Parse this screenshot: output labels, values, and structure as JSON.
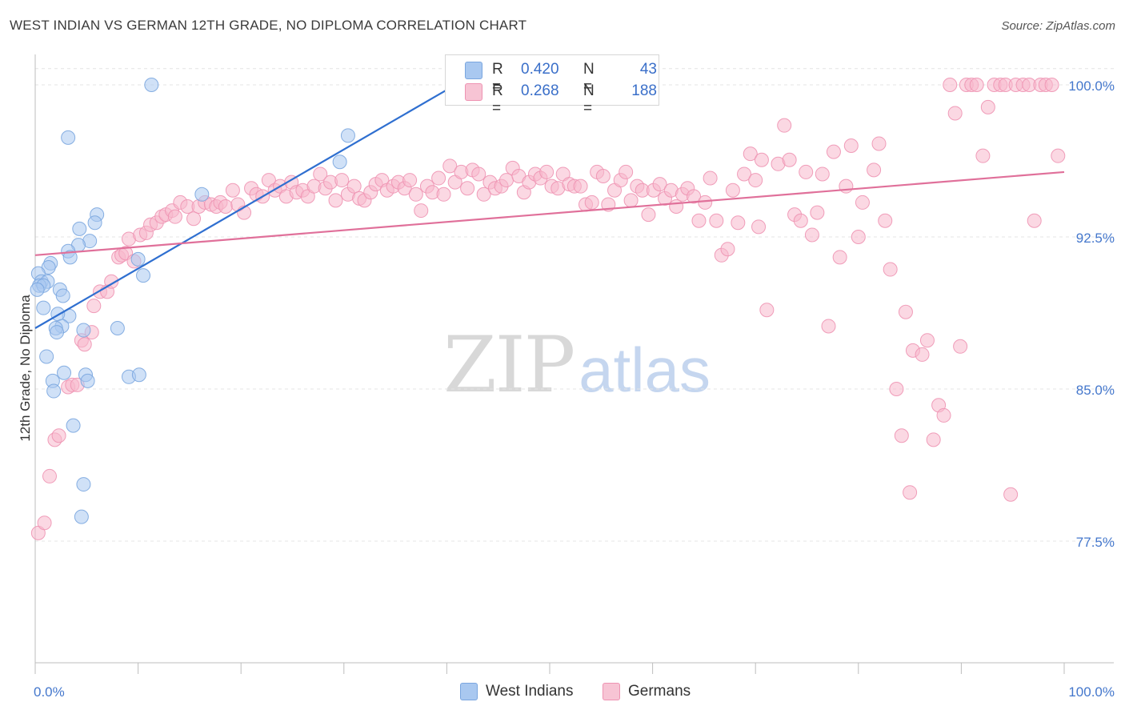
{
  "title": "WEST INDIAN VS GERMAN 12TH GRADE, NO DIPLOMA CORRELATION CHART",
  "source": "Source: ZipAtlas.com",
  "watermark": {
    "zip": "ZIP",
    "atlas": "atlas"
  },
  "legend": {
    "series": [
      {
        "r_label": "R = ",
        "r_value": "0.420",
        "n_label": "N = ",
        "n_value": "43"
      },
      {
        "r_label": "R = ",
        "r_value": "0.268",
        "n_label": "N = ",
        "n_value": "188"
      }
    ]
  },
  "bottom_legend": [
    "West Indians",
    "Germans"
  ],
  "chart_data": {
    "type": "scatter",
    "title": "WEST INDIAN VS GERMAN 12TH GRADE, NO DIPLOMA CORRELATION CHART",
    "xlabel": "",
    "ylabel": "12th Grade, No Diploma",
    "xlim": [
      0,
      100
    ],
    "ylim": [
      71.5,
      101.5
    ],
    "x_tick_labels": [
      "0.0%",
      "100.0%"
    ],
    "y_ticks": [
      100.0,
      92.5,
      85.0,
      77.5
    ],
    "y_tick_labels": [
      "100.0%",
      "92.5%",
      "85.0%",
      "77.5%"
    ],
    "grid": true,
    "legend_position": "top-center",
    "colors": {
      "west_indians_fill": "#a9c8f0",
      "west_indians_stroke": "#7aa6df",
      "west_indians_line": "#2f6fd0",
      "germans_fill": "#f7b8cc",
      "germans_stroke": "#ee93b2",
      "germans_line": "#e0709a",
      "tick_label": "#4477cc"
    },
    "series": [
      {
        "name": "West Indians",
        "R": 0.42,
        "N": 43,
        "trend": {
          "x": [
            0,
            40.5
          ],
          "y": [
            88.0,
            99.9
          ]
        },
        "points": [
          [
            11.3,
            100.0
          ],
          [
            3.2,
            97.4
          ],
          [
            30.4,
            97.5
          ],
          [
            29.6,
            96.2
          ],
          [
            16.2,
            94.6
          ],
          [
            6.0,
            93.6
          ],
          [
            5.8,
            93.2
          ],
          [
            4.3,
            92.9
          ],
          [
            5.3,
            92.3
          ],
          [
            4.2,
            92.1
          ],
          [
            3.2,
            91.8
          ],
          [
            3.4,
            91.5
          ],
          [
            1.5,
            91.2
          ],
          [
            1.3,
            91.0
          ],
          [
            10.0,
            91.4
          ],
          [
            10.5,
            90.6
          ],
          [
            0.3,
            90.7
          ],
          [
            0.6,
            90.3
          ],
          [
            1.2,
            90.3
          ],
          [
            0.4,
            90.1
          ],
          [
            0.8,
            90.1
          ],
          [
            0.2,
            89.9
          ],
          [
            2.4,
            89.9
          ],
          [
            2.7,
            89.6
          ],
          [
            0.8,
            89.0
          ],
          [
            3.3,
            88.6
          ],
          [
            2.2,
            88.7
          ],
          [
            2.6,
            88.1
          ],
          [
            2.0,
            88.0
          ],
          [
            2.1,
            87.8
          ],
          [
            4.7,
            87.9
          ],
          [
            8.0,
            88.0
          ],
          [
            1.1,
            86.6
          ],
          [
            2.8,
            85.8
          ],
          [
            4.9,
            85.7
          ],
          [
            9.1,
            85.6
          ],
          [
            10.1,
            85.7
          ],
          [
            5.1,
            85.4
          ],
          [
            1.7,
            85.4
          ],
          [
            1.8,
            84.9
          ],
          [
            3.7,
            83.2
          ],
          [
            4.7,
            80.3
          ],
          [
            4.5,
            78.7
          ]
        ]
      },
      {
        "name": "Germans",
        "R": 0.268,
        "N": 188,
        "trend": {
          "x": [
            0,
            100
          ],
          "y": [
            91.6,
            95.7
          ]
        },
        "points": [
          [
            0.3,
            77.9
          ],
          [
            0.9,
            78.4
          ],
          [
            1.4,
            80.7
          ],
          [
            1.9,
            82.5
          ],
          [
            2.3,
            82.7
          ],
          [
            3.2,
            85.1
          ],
          [
            3.6,
            85.2
          ],
          [
            4.1,
            85.2
          ],
          [
            4.5,
            87.4
          ],
          [
            4.8,
            87.2
          ],
          [
            5.5,
            87.8
          ],
          [
            5.7,
            89.1
          ],
          [
            6.3,
            89.8
          ],
          [
            7.0,
            89.8
          ],
          [
            7.4,
            90.3
          ],
          [
            8.1,
            91.5
          ],
          [
            8.4,
            91.6
          ],
          [
            8.8,
            91.7
          ],
          [
            9.6,
            91.3
          ],
          [
            9.1,
            92.4
          ],
          [
            10.2,
            92.6
          ],
          [
            10.8,
            92.7
          ],
          [
            11.2,
            93.1
          ],
          [
            11.8,
            93.2
          ],
          [
            12.3,
            93.5
          ],
          [
            12.7,
            93.6
          ],
          [
            13.3,
            93.8
          ],
          [
            13.6,
            93.5
          ],
          [
            14.1,
            94.2
          ],
          [
            14.8,
            94.0
          ],
          [
            15.4,
            93.4
          ],
          [
            15.9,
            94.0
          ],
          [
            16.5,
            94.2
          ],
          [
            17.1,
            94.1
          ],
          [
            17.6,
            94.0
          ],
          [
            18.0,
            94.2
          ],
          [
            18.5,
            94.0
          ],
          [
            19.2,
            94.8
          ],
          [
            19.7,
            94.1
          ],
          [
            20.3,
            93.7
          ],
          [
            21.0,
            94.9
          ],
          [
            21.5,
            94.6
          ],
          [
            22.1,
            94.5
          ],
          [
            22.7,
            95.3
          ],
          [
            23.3,
            94.8
          ],
          [
            23.8,
            95.0
          ],
          [
            24.4,
            94.5
          ],
          [
            24.9,
            95.2
          ],
          [
            25.4,
            94.7
          ],
          [
            26.0,
            94.8
          ],
          [
            26.5,
            94.5
          ],
          [
            27.1,
            95.0
          ],
          [
            27.7,
            95.6
          ],
          [
            28.2,
            94.9
          ],
          [
            28.7,
            95.2
          ],
          [
            29.2,
            94.3
          ],
          [
            29.8,
            95.3
          ],
          [
            30.4,
            94.6
          ],
          [
            31.0,
            95.0
          ],
          [
            31.5,
            94.4
          ],
          [
            32.0,
            94.3
          ],
          [
            32.6,
            94.7
          ],
          [
            33.1,
            95.1
          ],
          [
            33.7,
            95.3
          ],
          [
            34.2,
            94.8
          ],
          [
            34.8,
            95.0
          ],
          [
            35.3,
            95.2
          ],
          [
            35.9,
            94.9
          ],
          [
            36.4,
            95.3
          ],
          [
            37.0,
            94.6
          ],
          [
            37.5,
            93.8
          ],
          [
            38.1,
            95.0
          ],
          [
            38.6,
            94.7
          ],
          [
            39.2,
            95.4
          ],
          [
            39.7,
            94.6
          ],
          [
            40.3,
            96.0
          ],
          [
            40.8,
            95.2
          ],
          [
            41.4,
            95.7
          ],
          [
            42.0,
            94.9
          ],
          [
            42.5,
            95.8
          ],
          [
            43.1,
            95.6
          ],
          [
            43.6,
            94.6
          ],
          [
            44.2,
            95.2
          ],
          [
            44.7,
            94.9
          ],
          [
            45.3,
            95.0
          ],
          [
            45.8,
            95.3
          ],
          [
            46.4,
            95.9
          ],
          [
            47.0,
            95.5
          ],
          [
            47.5,
            94.7
          ],
          [
            48.0,
            95.2
          ],
          [
            48.6,
            95.6
          ],
          [
            49.1,
            95.4
          ],
          [
            49.7,
            95.7
          ],
          [
            50.2,
            95.0
          ],
          [
            50.8,
            94.9
          ],
          [
            51.3,
            95.6
          ],
          [
            51.9,
            95.1
          ],
          [
            52.4,
            95.0
          ],
          [
            53.0,
            95.0
          ],
          [
            53.5,
            94.1
          ],
          [
            54.1,
            94.2
          ],
          [
            54.6,
            95.7
          ],
          [
            55.2,
            95.5
          ],
          [
            55.7,
            94.1
          ],
          [
            56.3,
            94.8
          ],
          [
            56.9,
            95.3
          ],
          [
            57.4,
            95.7
          ],
          [
            57.9,
            94.3
          ],
          [
            58.5,
            95.0
          ],
          [
            59.0,
            94.8
          ],
          [
            59.6,
            93.6
          ],
          [
            60.1,
            94.8
          ],
          [
            60.7,
            95.1
          ],
          [
            61.2,
            94.4
          ],
          [
            61.8,
            94.8
          ],
          [
            62.3,
            94.0
          ],
          [
            62.9,
            94.6
          ],
          [
            63.4,
            94.9
          ],
          [
            64.0,
            94.5
          ],
          [
            64.5,
            93.3
          ],
          [
            65.1,
            94.2
          ],
          [
            65.6,
            95.4
          ],
          [
            66.2,
            93.3
          ],
          [
            66.7,
            91.6
          ],
          [
            67.3,
            91.9
          ],
          [
            67.8,
            94.8
          ],
          [
            68.3,
            93.2
          ],
          [
            68.9,
            95.6
          ],
          [
            69.5,
            96.6
          ],
          [
            70.0,
            95.3
          ],
          [
            70.6,
            96.3
          ],
          [
            71.1,
            88.9
          ],
          [
            70.3,
            93.0
          ],
          [
            72.2,
            96.1
          ],
          [
            72.8,
            98.0
          ],
          [
            73.3,
            96.3
          ],
          [
            73.8,
            93.6
          ],
          [
            74.4,
            93.3
          ],
          [
            74.9,
            95.7
          ],
          [
            75.5,
            92.6
          ],
          [
            76.0,
            93.7
          ],
          [
            76.5,
            95.6
          ],
          [
            77.1,
            88.1
          ],
          [
            77.6,
            96.7
          ],
          [
            78.2,
            91.5
          ],
          [
            78.8,
            95.0
          ],
          [
            79.3,
            97.0
          ],
          [
            80.0,
            92.5
          ],
          [
            80.4,
            94.2
          ],
          [
            81.5,
            95.8
          ],
          [
            82.0,
            97.1
          ],
          [
            82.6,
            93.3
          ],
          [
            83.1,
            90.9
          ],
          [
            83.7,
            85.0
          ],
          [
            84.2,
            82.7
          ],
          [
            84.6,
            88.8
          ],
          [
            85.0,
            79.9
          ],
          [
            85.3,
            86.9
          ],
          [
            86.2,
            86.7
          ],
          [
            86.7,
            87.4
          ],
          [
            87.3,
            82.5
          ],
          [
            87.8,
            84.2
          ],
          [
            88.3,
            83.7
          ],
          [
            88.9,
            100.0
          ],
          [
            89.4,
            98.6
          ],
          [
            89.9,
            87.1
          ],
          [
            90.5,
            100.0
          ],
          [
            91.0,
            100.0
          ],
          [
            91.5,
            100.0
          ],
          [
            92.1,
            96.5
          ],
          [
            92.6,
            98.9
          ],
          [
            93.2,
            100.0
          ],
          [
            93.8,
            100.0
          ],
          [
            94.3,
            100.0
          ],
          [
            94.8,
            79.8
          ],
          [
            95.3,
            100.0
          ],
          [
            96.0,
            100.0
          ],
          [
            96.6,
            100.0
          ],
          [
            97.1,
            93.3
          ],
          [
            97.7,
            100.0
          ],
          [
            98.2,
            100.0
          ],
          [
            98.8,
            100.0
          ],
          [
            99.4,
            96.5
          ]
        ]
      }
    ]
  }
}
